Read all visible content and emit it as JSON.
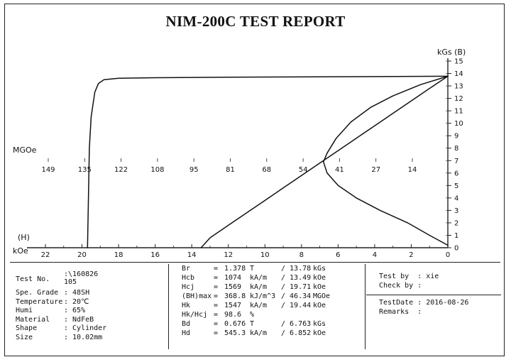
{
  "title": "NIM-200C TEST REPORT",
  "chart_data": {
    "type": "line",
    "x_axis": {
      "label": "kOe",
      "end_label": "(H)",
      "range": [
        22,
        0
      ],
      "ticks": [
        22,
        20,
        18,
        16,
        14,
        12,
        10,
        8,
        6,
        4,
        2,
        0
      ]
    },
    "y_axis": {
      "label": "kGs (B)",
      "range": [
        0,
        15
      ],
      "ticks": [
        0,
        1,
        2,
        3,
        4,
        5,
        6,
        7,
        8,
        9,
        10,
        11,
        12,
        13,
        14,
        15
      ],
      "position": "right"
    },
    "energy_axis": {
      "label": "MGOe",
      "ticks": [
        149,
        135,
        122,
        108,
        95,
        81,
        68,
        54,
        41,
        27,
        14
      ]
    },
    "series": [
      {
        "id": "j-curve",
        "points": [
          [
            0,
            13.78
          ],
          [
            6,
            13.74
          ],
          [
            12,
            13.7
          ],
          [
            16,
            13.66
          ],
          [
            18,
            13.62
          ],
          [
            18.8,
            13.5
          ],
          [
            19.1,
            13.2
          ],
          [
            19.3,
            12.5
          ],
          [
            19.5,
            10.5
          ],
          [
            19.6,
            8
          ],
          [
            19.65,
            4
          ],
          [
            19.7,
            0
          ]
        ]
      },
      {
        "id": "b-curve",
        "points": [
          [
            0,
            13.78
          ],
          [
            1,
            12.8
          ],
          [
            2,
            11.8
          ],
          [
            3,
            10.8
          ],
          [
            4,
            9.8
          ],
          [
            5,
            8.8
          ],
          [
            6,
            7.8
          ],
          [
            7,
            6.8
          ],
          [
            8,
            5.8
          ],
          [
            9,
            4.8
          ],
          [
            10,
            3.8
          ],
          [
            11,
            2.8
          ],
          [
            12,
            1.8
          ],
          [
            13,
            0.8
          ],
          [
            13.49,
            0
          ]
        ]
      },
      {
        "id": "energy-curve",
        "points": [
          [
            0,
            13.78
          ],
          [
            1.5,
            13.1
          ],
          [
            3,
            12.2
          ],
          [
            4.2,
            11.3
          ],
          [
            5.3,
            10.1
          ],
          [
            6.1,
            8.8
          ],
          [
            6.6,
            7.6
          ],
          [
            6.8,
            6.9
          ],
          [
            6.6,
            6.0
          ],
          [
            6.0,
            5.0
          ],
          [
            5.0,
            4.0
          ],
          [
            3.7,
            3.0
          ],
          [
            2.2,
            2.0
          ],
          [
            1.0,
            1.0
          ],
          [
            0,
            0.2
          ]
        ]
      }
    ]
  },
  "sample": {
    "rows": [
      {
        "label": "Test No.",
        "value": ":\\160826\n105"
      },
      {
        "label": "Spe. Grade",
        "value": ": 48SH"
      },
      {
        "label": "Temperature",
        "value": ": 20℃"
      },
      {
        "label": "Humi",
        "value": ": 65%"
      },
      {
        "label": "Material",
        "value": ": NdFeB"
      },
      {
        "label": "Shape",
        "value": ": Cylinder"
      },
      {
        "label": "Size",
        "value": ": 10.02mm"
      }
    ]
  },
  "measurements": [
    {
      "label": "Br",
      "eq": "=",
      "v1": "1.378",
      "u1": "T",
      "v2": "/ 13.78",
      "u2": "kGs"
    },
    {
      "label": "Hcb",
      "eq": "=",
      "v1": "1074",
      "u1": "kA/m",
      "v2": "/ 13.49",
      "u2": "kOe"
    },
    {
      "label": "Hcj",
      "eq": "=",
      "v1": "1569",
      "u1": "kA/m",
      "v2": "/ 19.71",
      "u2": "kOe"
    },
    {
      "label": "(BH)max",
      "eq": "=",
      "v1": "368.8",
      "u1": "kJ/m^3",
      "v2": "/ 46.34",
      "u2": "MGOe"
    },
    {
      "label": "Hk",
      "eq": "=",
      "v1": "1547",
      "u1": "kA/m",
      "v2": "/ 19.44",
      "u2": "kOe"
    },
    {
      "label": "Hk/Hcj",
      "eq": "=",
      "v1": "98.6",
      "u1": "%",
      "v2": "",
      "u2": ""
    },
    {
      "label": "Bd",
      "eq": "=",
      "v1": "0.676",
      "u1": "T",
      "v2": "/ 6.763",
      "u2": "kGs"
    },
    {
      "label": "Hd",
      "eq": "=",
      "v1": "545.3",
      "u1": "kA/m",
      "v2": "/ 6.852",
      "u2": "kOe"
    }
  ],
  "signoff": {
    "test_by": "Test by  : xie",
    "check_by": "Check by :",
    "test_date": "TestDate : 2016-08-26",
    "remarks": "Remarks  :"
  }
}
